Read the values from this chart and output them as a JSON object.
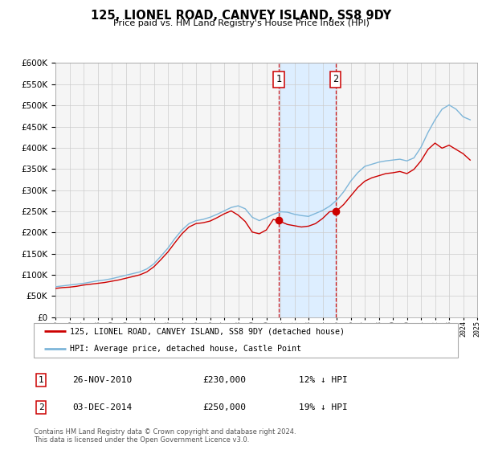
{
  "title": "125, LIONEL ROAD, CANVEY ISLAND, SS8 9DY",
  "subtitle": "Price paid vs. HM Land Registry's House Price Index (HPI)",
  "hpi_label": "HPI: Average price, detached house, Castle Point",
  "price_label": "125, LIONEL ROAD, CANVEY ISLAND, SS8 9DY (detached house)",
  "legend_footnote1": "Contains HM Land Registry data © Crown copyright and database right 2024.",
  "legend_footnote2": "This data is licensed under the Open Government Licence v3.0.",
  "sale1_date": "26-NOV-2010",
  "sale1_price": "£230,000",
  "sale1_note": "12% ↓ HPI",
  "sale2_date": "03-DEC-2014",
  "sale2_price": "£250,000",
  "sale2_note": "19% ↓ HPI",
  "sale1_year": 2010.9,
  "sale1_value": 230000,
  "sale2_year": 2014.92,
  "sale2_value": 250000,
  "ylim_max": 600000,
  "ylim_min": 0,
  "xlim_min": 1995,
  "xlim_max": 2025,
  "price_color": "#cc0000",
  "hpi_color": "#7eb6d9",
  "shade_color": "#ddeeff",
  "background_color": "#f5f5f5",
  "hpi_data_years": [
    1995.0,
    1995.5,
    1996.0,
    1996.5,
    1997.0,
    1997.5,
    1998.0,
    1998.5,
    1999.0,
    1999.5,
    2000.0,
    2000.5,
    2001.0,
    2001.5,
    2002.0,
    2002.5,
    2003.0,
    2003.5,
    2004.0,
    2004.5,
    2005.0,
    2005.5,
    2006.0,
    2006.5,
    2007.0,
    2007.5,
    2008.0,
    2008.5,
    2009.0,
    2009.5,
    2010.0,
    2010.5,
    2011.0,
    2011.5,
    2012.0,
    2012.5,
    2013.0,
    2013.5,
    2014.0,
    2014.5,
    2015.0,
    2015.5,
    2016.0,
    2016.5,
    2017.0,
    2017.5,
    2018.0,
    2018.5,
    2019.0,
    2019.5,
    2020.0,
    2020.5,
    2021.0,
    2021.5,
    2022.0,
    2022.5,
    2023.0,
    2023.5,
    2024.0,
    2024.5
  ],
  "hpi_data_values": [
    72000,
    74000,
    76000,
    78000,
    80000,
    83000,
    86000,
    88000,
    91000,
    95000,
    99000,
    103000,
    107000,
    114000,
    126000,
    144000,
    163000,
    186000,
    206000,
    221000,
    228000,
    231000,
    236000,
    243000,
    251000,
    259000,
    263000,
    256000,
    236000,
    228000,
    235000,
    243000,
    249000,
    248000,
    243000,
    240000,
    238000,
    245000,
    252000,
    262000,
    276000,
    296000,
    321000,
    341000,
    356000,
    361000,
    366000,
    369000,
    371000,
    373000,
    369000,
    376000,
    401000,
    436000,
    466000,
    491000,
    501000,
    491000,
    473000,
    466000
  ],
  "price_data_years": [
    1995.0,
    1995.5,
    1996.0,
    1996.5,
    1997.0,
    1997.5,
    1998.0,
    1998.5,
    1999.0,
    1999.5,
    2000.0,
    2000.5,
    2001.0,
    2001.5,
    2002.0,
    2002.5,
    2003.0,
    2003.5,
    2004.0,
    2004.5,
    2005.0,
    2005.5,
    2006.0,
    2006.5,
    2007.0,
    2007.5,
    2008.0,
    2008.5,
    2009.0,
    2009.5,
    2010.0,
    2010.5,
    2011.0,
    2011.5,
    2012.0,
    2012.5,
    2013.0,
    2013.5,
    2014.0,
    2014.5,
    2015.0,
    2015.5,
    2016.0,
    2016.5,
    2017.0,
    2017.5,
    2018.0,
    2018.5,
    2019.0,
    2019.5,
    2020.0,
    2020.5,
    2021.0,
    2021.5,
    2022.0,
    2022.5,
    2023.0,
    2023.5,
    2024.0,
    2024.5
  ],
  "price_data_values": [
    68000,
    70000,
    71000,
    73000,
    76000,
    78000,
    80000,
    82000,
    85000,
    88000,
    92000,
    96000,
    100000,
    107000,
    119000,
    136000,
    154000,
    176000,
    197000,
    213000,
    221000,
    223000,
    227000,
    235000,
    244000,
    251000,
    241000,
    226000,
    201000,
    197000,
    206000,
    231000,
    226000,
    219000,
    216000,
    213000,
    215000,
    221000,
    233000,
    249000,
    251000,
    266000,
    286000,
    306000,
    321000,
    329000,
    334000,
    339000,
    341000,
    344000,
    339000,
    349000,
    369000,
    396000,
    411000,
    399000,
    406000,
    396000,
    386000,
    371000
  ]
}
